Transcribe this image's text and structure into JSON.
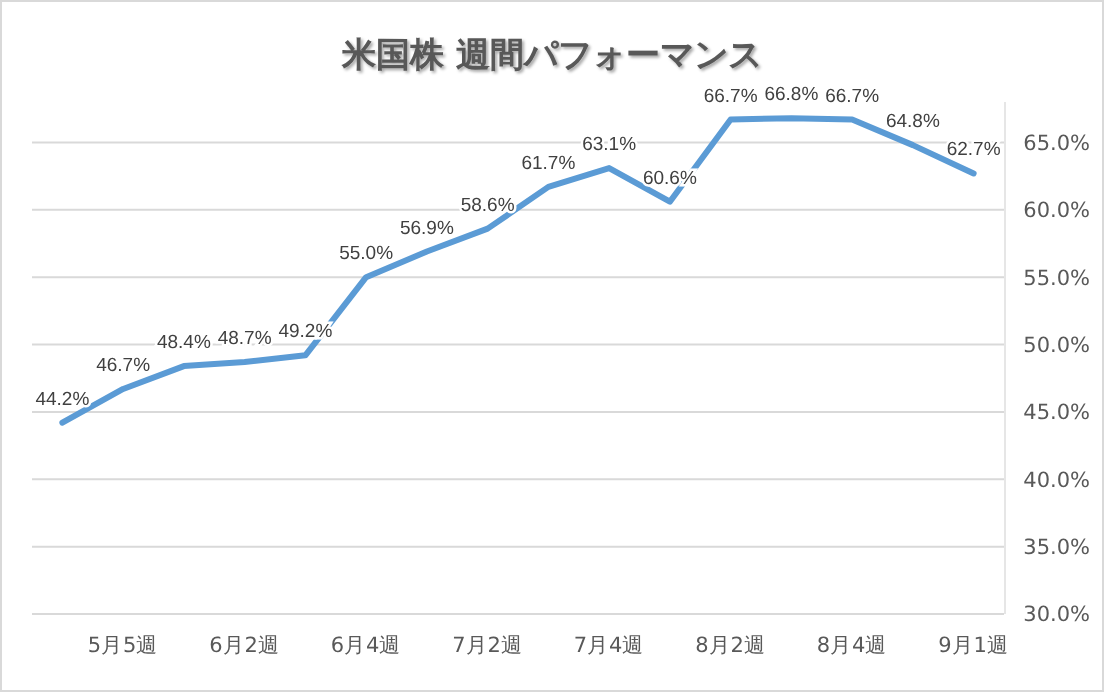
{
  "chart_data": {
    "type": "line",
    "title": "米国株 週間パフォーマンス",
    "categories": [
      null,
      "5月5週",
      null,
      "6月2週",
      null,
      "6月4週",
      null,
      "7月2週",
      null,
      "7月4週",
      null,
      "8月2週",
      null,
      "8月4週",
      null,
      "9月1週"
    ],
    "series": [
      {
        "color": "#5b9bd5",
        "values": [
          44.2,
          46.7,
          48.4,
          48.7,
          49.2,
          55.0,
          56.9,
          58.6,
          61.7,
          63.1,
          60.6,
          66.7,
          66.8,
          66.7,
          64.8,
          62.7
        ],
        "value_labels": [
          "44.2%",
          "46.7%",
          "48.4%",
          "48.7%",
          "49.2%",
          "55.0%",
          "56.9%",
          "58.6%",
          "61.7%",
          "63.1%",
          "60.6%",
          "66.7%",
          "66.8%",
          "66.7%",
          "64.8%",
          "62.7%"
        ]
      }
    ],
    "ylim": [
      30,
      68
    ],
    "yticks": [
      {
        "value": 30,
        "label": "30.0%"
      },
      {
        "value": 35,
        "label": "35.0%"
      },
      {
        "value": 40,
        "label": "40.0%"
      },
      {
        "value": 45,
        "label": "45.0%"
      },
      {
        "value": 50,
        "label": "50.0%"
      },
      {
        "value": 55,
        "label": "55.0%"
      },
      {
        "value": 60,
        "label": "60.0%"
      },
      {
        "value": 65,
        "label": "65.0%"
      }
    ],
    "grid": "y",
    "marker": "none",
    "line_style": "solid"
  }
}
